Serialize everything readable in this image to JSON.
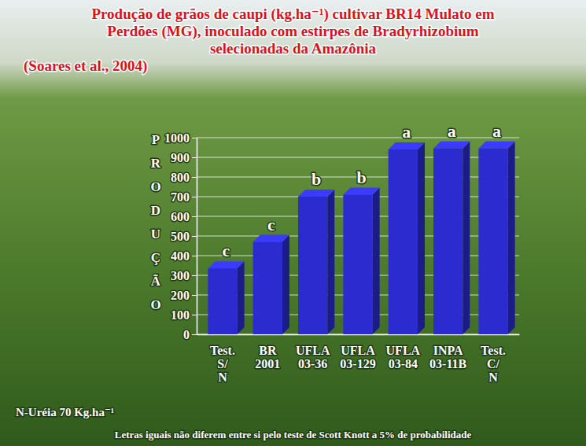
{
  "chart_data": {
    "type": "bar",
    "title": "Produção de grãos de caupi (kg.ha⁻¹) cultivar BR14 Mulato em Perdões (MG), inoculado com estirpes de Bradyrhizobium selecionadas da Amazônia",
    "subtitle": "(Soares et al., 2004)",
    "y_label": "PRODUÇÃO",
    "categories": [
      "Test. S/ N",
      "BR 2001",
      "UFLA 03-36",
      "UFLA 03-129",
      "UFLA 03-84",
      "INPA 03-11B",
      "Test. C/ N"
    ],
    "values": [
      335,
      470,
      700,
      710,
      940,
      945,
      945
    ],
    "annotations": [
      "c",
      "c",
      "b",
      "b",
      "a",
      "a",
      "a"
    ],
    "notes": [
      "N-Uréia 70 Kg.ha⁻¹",
      "Letras iguais não diferem entre si pelo teste de Scott Knott a 5% de probabilidade"
    ],
    "color": "#2b2bd0",
    "ylim": [
      0,
      1000
    ],
    "yticks": [
      0,
      100,
      200,
      300,
      400,
      500,
      600,
      700,
      800,
      900,
      1000
    ],
    "grid": true
  }
}
